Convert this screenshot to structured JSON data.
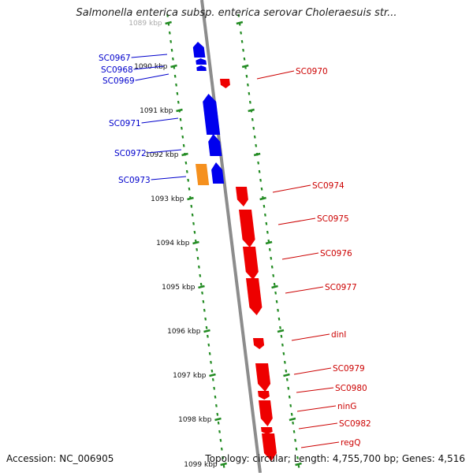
{
  "header": {
    "title": "Salmonella enterica subsp. enterica serovar Choleraesuis str..."
  },
  "footer": {
    "accession": "Accession: NC_006905",
    "summary": "Topology: circular; Length: 4,755,700 bp; Genes: 4,516"
  },
  "colors": {
    "forward_strand": "#0000ee",
    "reverse_strand": "#ee0000",
    "highlight": "#f5901e",
    "tick_marks": "#228b22",
    "backbone": "#8c8c8c"
  },
  "ruler": {
    "labels": [
      "1089 kbp",
      "1090 kbp",
      "1091 kbp",
      "1092 kbp",
      "1093 kbp",
      "1094 kbp",
      "1095 kbp",
      "1096 kbp",
      "1097 kbp",
      "1098 kbp",
      "1099 kbp"
    ]
  },
  "genes_left": [
    {
      "id": "SC0967",
      "color": "#0000cc"
    },
    {
      "id": "SC0968",
      "color": "#0000cc"
    },
    {
      "id": "SC0969",
      "color": "#0000cc"
    },
    {
      "id": "SC0971",
      "color": "#0000cc"
    },
    {
      "id": "SC0972",
      "color": "#0000cc"
    },
    {
      "id": "SC0973",
      "color": "#0000cc"
    }
  ],
  "genes_right": [
    {
      "id": "SC0970",
      "color": "#cc0000"
    },
    {
      "id": "SC0974",
      "color": "#cc0000"
    },
    {
      "id": "SC0975",
      "color": "#cc0000"
    },
    {
      "id": "SC0976",
      "color": "#cc0000"
    },
    {
      "id": "SC0977",
      "color": "#cc0000"
    },
    {
      "id": "dinI",
      "color": "#cc0000"
    },
    {
      "id": "SC0979",
      "color": "#cc0000"
    },
    {
      "id": "SC0980",
      "color": "#cc0000"
    },
    {
      "id": "ninG",
      "color": "#cc0000"
    },
    {
      "id": "SC0982",
      "color": "#cc0000"
    },
    {
      "id": "regQ",
      "color": "#cc0000"
    }
  ]
}
